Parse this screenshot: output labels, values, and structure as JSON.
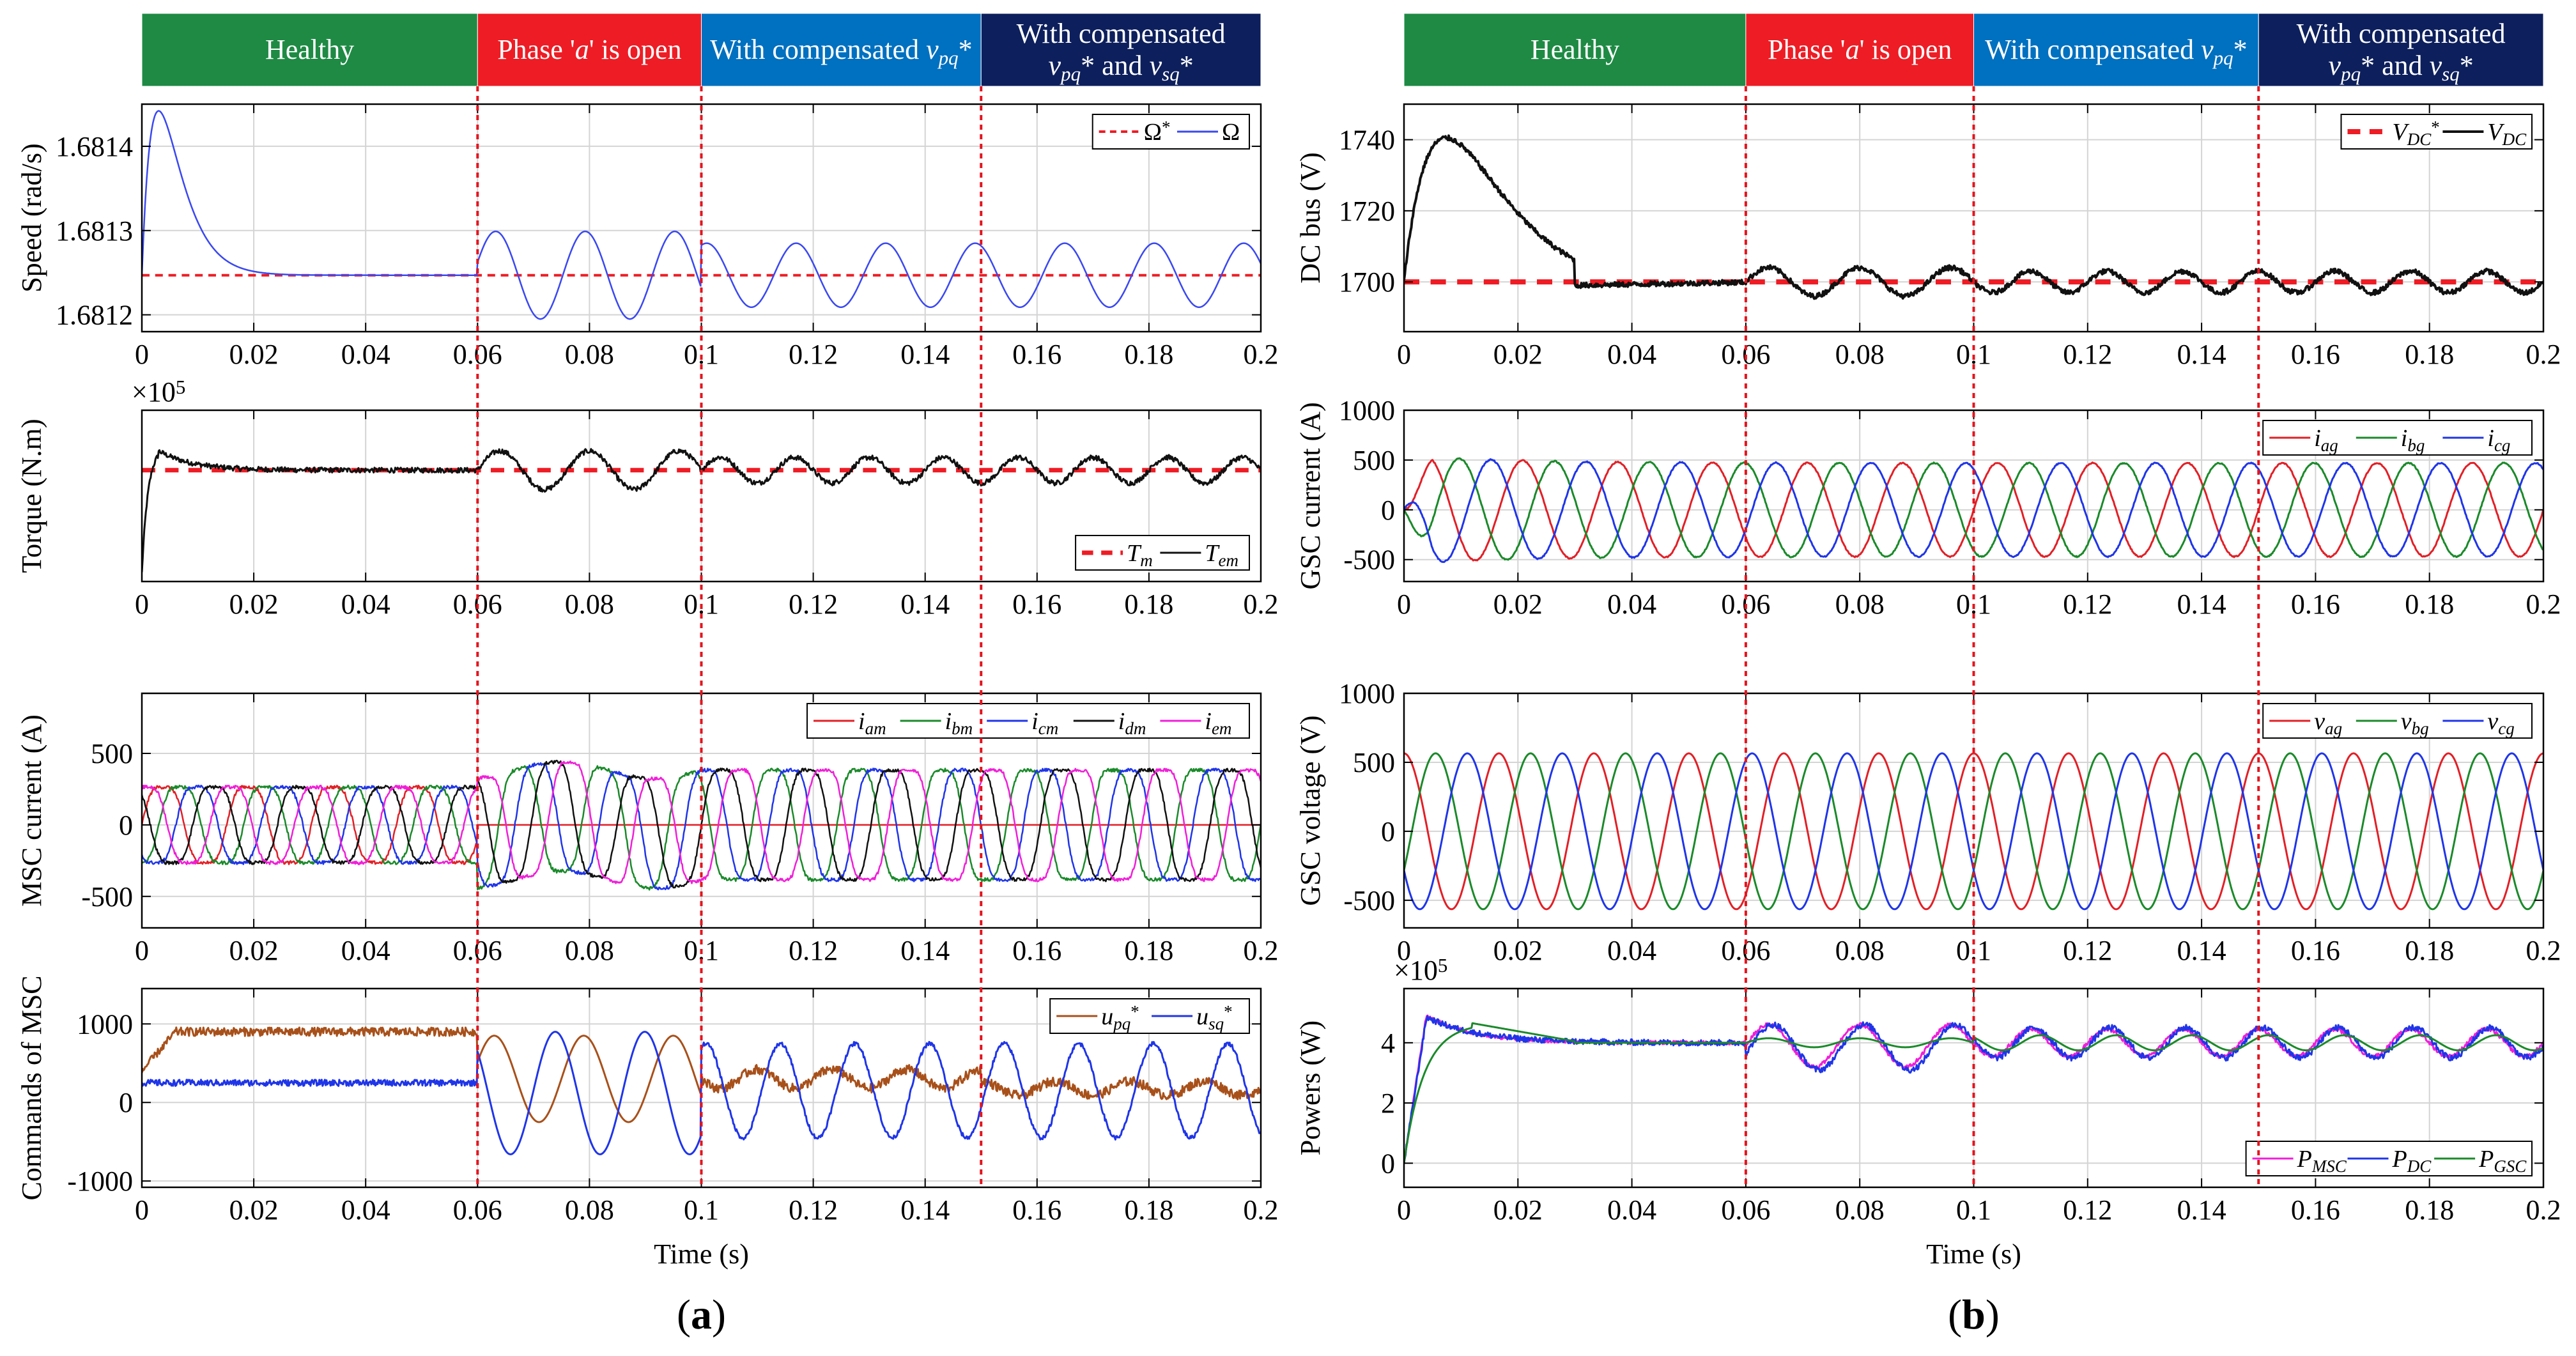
{
  "figure": {
    "panel_labels": [
      {
        "open": "(",
        "letter": "a",
        "close": ")"
      },
      {
        "open": "(",
        "letter": "b",
        "close": ")"
      }
    ],
    "time_label": "Time (s)",
    "phase_colors": [
      "#1e8a44",
      "#ee1c24",
      "#0070c0",
      "#0d1f5c"
    ],
    "phases": [
      {
        "lines": [
          [
            {
              "t": "Healthy"
            }
          ]
        ]
      },
      {
        "lines": [
          [
            {
              "t": "Phase '"
            },
            {
              "t": "a",
              "i": true
            },
            {
              "t": "' is open"
            }
          ]
        ]
      },
      {
        "lines": [
          [
            {
              "t": "With compensated "
            },
            {
              "t": "v",
              "i": true
            },
            {
              "t": "pq",
              "i": true,
              "sub": true
            },
            {
              "t": "*"
            }
          ]
        ]
      },
      {
        "lines": [
          [
            {
              "t": "With compensated"
            }
          ],
          [
            {
              "t": "v",
              "i": true
            },
            {
              "t": "pq",
              "i": true,
              "sub": true
            },
            {
              "t": "* and "
            },
            {
              "t": "v",
              "i": true
            },
            {
              "t": "sq",
              "i": true,
              "sub": true
            },
            {
              "t": "*"
            }
          ]
        ]
      }
    ],
    "x_ticks": [
      0,
      0.02,
      0.04,
      0.06,
      0.08,
      0.1,
      0.12,
      0.14,
      0.16,
      0.18,
      0.2
    ],
    "x_tick_labels": [
      "0",
      "0.02",
      "0.04",
      "0.06",
      "0.08",
      "0.1",
      "0.12",
      "0.14",
      "0.16",
      "0.18",
      "0.2"
    ],
    "event_times": [
      0.06,
      0.1,
      0.15
    ]
  },
  "chart_data": [
    {
      "panel": "a",
      "type": "line",
      "ylabel": "Speed (rad/s)",
      "xlim": [
        0,
        0.2
      ],
      "ylim": [
        1.68118,
        1.68145
      ],
      "yticks": [
        1.6812,
        1.6813,
        1.6814
      ],
      "ytick_labels": [
        "1.6812",
        "1.6813",
        "1.6814"
      ],
      "exponent": "",
      "legend": {
        "position": "top-right",
        "entries": [
          [
            {
              "t": "Ω"
            },
            {
              "t": "*",
              "sup": true
            }
          ],
          [
            {
              "t": "Ω"
            }
          ]
        ]
      },
      "series": [
        {
          "name": "Ω*",
          "color": "#ee1c24",
          "style": "dashed",
          "width": 4,
          "shape": "const",
          "value": 1.681247
        },
        {
          "name": "Ω",
          "color": "#3a48f0",
          "style": "solid",
          "width": 2.5,
          "shape": "speed",
          "value": 1.681247
        }
      ]
    },
    {
      "panel": "a",
      "type": "line",
      "ylabel": "Torque (N.m)",
      "xlim": [
        0,
        0.2
      ],
      "ylim": [
        -0.2,
        3.8
      ],
      "yticks": [],
      "ytick_labels": [],
      "exponent": "×10^5",
      "legend": {
        "position": "bottom-right",
        "entries": [
          [
            {
              "t": "T",
              "i": true
            },
            {
              "t": "m",
              "i": true,
              "sub": true
            }
          ],
          [
            {
              "t": "T",
              "i": true
            },
            {
              "t": "em",
              "i": true,
              "sub": true
            }
          ]
        ]
      },
      "series": [
        {
          "name": "Tm",
          "color": "#ee1c24",
          "style": "dashed",
          "width": 7,
          "shape": "const",
          "value": 2.4
        },
        {
          "name": "Tem",
          "color": "#111111",
          "style": "solid",
          "width": 3,
          "shape": "torque",
          "value": 2.4
        }
      ]
    },
    {
      "panel": "a",
      "type": "line",
      "ylabel": "MSC current (A)",
      "xlim": [
        0,
        0.2
      ],
      "ylim": [
        -720,
        920
      ],
      "yticks": [
        -500,
        0,
        500
      ],
      "ytick_labels": [
        "-500",
        "0",
        "500"
      ],
      "exponent": "",
      "legend": {
        "position": "top-right",
        "entries": [
          [
            {
              "t": "i",
              "i": true
            },
            {
              "t": "am",
              "i": true,
              "sub": true
            }
          ],
          [
            {
              "t": "i",
              "i": true
            },
            {
              "t": "bm",
              "i": true,
              "sub": true
            }
          ],
          [
            {
              "t": "i",
              "i": true
            },
            {
              "t": "cm",
              "i": true,
              "sub": true
            }
          ],
          [
            {
              "t": "i",
              "i": true
            },
            {
              "t": "dm",
              "i": true,
              "sub": true
            }
          ],
          [
            {
              "t": "i",
              "i": true
            },
            {
              "t": "em",
              "i": true,
              "sub": true
            }
          ]
        ]
      },
      "series": [
        {
          "name": "iam",
          "color": "#e21f26",
          "style": "solid",
          "width": 2.5,
          "shape": "msc",
          "amp": 300,
          "phase": 0
        },
        {
          "name": "ibm",
          "color": "#1a8a2a",
          "style": "solid",
          "width": 2.5,
          "shape": "msc",
          "amp": 300,
          "phase": -72
        },
        {
          "name": "icm",
          "color": "#1f35e8",
          "style": "solid",
          "width": 2.5,
          "shape": "msc",
          "amp": 300,
          "phase": -144
        },
        {
          "name": "idm",
          "color": "#111111",
          "style": "solid",
          "width": 2.5,
          "shape": "msc",
          "amp": 300,
          "phase": -216
        },
        {
          "name": "iem",
          "color": "#f01fd8",
          "style": "solid",
          "width": 2.5,
          "shape": "msc",
          "amp": 300,
          "phase": -288
        }
      ]
    },
    {
      "panel": "a",
      "type": "line",
      "ylabel": "Commands of MSC",
      "xlim": [
        0,
        0.2
      ],
      "ylim": [
        -1080,
        1450
      ],
      "yticks": [
        -1000,
        0,
        1000
      ],
      "ytick_labels": [
        "-1000",
        "0",
        "1000"
      ],
      "exponent": "",
      "legend": {
        "position": "top-right",
        "entries": [
          [
            {
              "t": "u",
              "i": true
            },
            {
              "t": "pq",
              "i": true,
              "sub": true
            },
            {
              "t": "*",
              "sup": true
            }
          ],
          [
            {
              "t": "u",
              "i": true
            },
            {
              "t": "sq",
              "i": true,
              "sub": true
            },
            {
              "t": "*",
              "sup": true
            }
          ]
        ]
      },
      "series": [
        {
          "name": "upq*",
          "color": "#a8501a",
          "style": "solid",
          "width": 3,
          "shape": "upq",
          "value": 900
        },
        {
          "name": "usq*",
          "color": "#1f35e8",
          "style": "solid",
          "width": 3,
          "shape": "usq",
          "value": 250
        }
      ]
    },
    {
      "panel": "b",
      "type": "line",
      "ylabel": "DC bus (V)",
      "xlim": [
        0,
        0.2
      ],
      "ylim": [
        1686,
        1750
      ],
      "yticks": [
        1700,
        1720,
        1740
      ],
      "ytick_labels": [
        "1700",
        "1720",
        "1740"
      ],
      "exponent": "",
      "legend": {
        "position": "top-right",
        "entries": [
          [
            {
              "t": "V",
              "i": true
            },
            {
              "t": "DC",
              "i": true,
              "sub": true
            },
            {
              "t": "*",
              "sup": true
            }
          ],
          [
            {
              "t": "V",
              "i": true
            },
            {
              "t": "DC",
              "i": true,
              "sub": true
            }
          ]
        ]
      },
      "series": [
        {
          "name": "VDC*",
          "color": "#ee1c24",
          "style": "dashed",
          "width": 8,
          "shape": "const",
          "value": 1700
        },
        {
          "name": "VDC",
          "color": "#111111",
          "style": "solid",
          "width": 4,
          "shape": "dcbus",
          "value": 1700
        }
      ]
    },
    {
      "panel": "b",
      "type": "line",
      "ylabel": "GSC current (A)",
      "xlim": [
        0,
        0.2
      ],
      "ylim": [
        -720,
        1000
      ],
      "yticks": [
        -500,
        0,
        500,
        1000
      ],
      "ytick_labels": [
        "-500",
        "0",
        "500",
        "1000"
      ],
      "exponent": "",
      "legend": {
        "position": "top-right",
        "entries": [
          [
            {
              "t": "i",
              "i": true
            },
            {
              "t": "ag",
              "i": true,
              "sub": true
            }
          ],
          [
            {
              "t": "i",
              "i": true
            },
            {
              "t": "bg",
              "i": true,
              "sub": true
            }
          ],
          [
            {
              "t": "i",
              "i": true
            },
            {
              "t": "cg",
              "i": true,
              "sub": true
            }
          ]
        ]
      },
      "series": [
        {
          "name": "iag",
          "color": "#e21f26",
          "style": "solid",
          "width": 3,
          "shape": "gsci",
          "amp": 470,
          "phase": 0
        },
        {
          "name": "ibg",
          "color": "#1a8a2a",
          "style": "solid",
          "width": 3,
          "shape": "gsci",
          "amp": 470,
          "phase": -120
        },
        {
          "name": "icg",
          "color": "#1f35e8",
          "style": "solid",
          "width": 3,
          "shape": "gsci",
          "amp": 470,
          "phase": -240
        }
      ]
    },
    {
      "panel": "b",
      "type": "line",
      "ylabel": "GSC voltage (V)",
      "xlim": [
        0,
        0.2
      ],
      "ylim": [
        -700,
        1000
      ],
      "yticks": [
        -500,
        0,
        500,
        1000
      ],
      "ytick_labels": [
        "-500",
        "0",
        "500",
        "1000"
      ],
      "exponent": "",
      "legend": {
        "position": "top-right",
        "entries": [
          [
            {
              "t": "v",
              "i": true
            },
            {
              "t": "ag",
              "i": true,
              "sub": true
            }
          ],
          [
            {
              "t": "v",
              "i": true
            },
            {
              "t": "bg",
              "i": true,
              "sub": true
            }
          ],
          [
            {
              "t": "v",
              "i": true
            },
            {
              "t": "cg",
              "i": true,
              "sub": true
            }
          ]
        ]
      },
      "series": [
        {
          "name": "vag",
          "color": "#e21f26",
          "style": "solid",
          "width": 3,
          "shape": "gscv",
          "amp": 565,
          "phase": 90
        },
        {
          "name": "vbg",
          "color": "#1a8a2a",
          "style": "solid",
          "width": 3,
          "shape": "gscv",
          "amp": 565,
          "phase": -30
        },
        {
          "name": "vcg",
          "color": "#1f35e8",
          "style": "solid",
          "width": 3,
          "shape": "gscv",
          "amp": 565,
          "phase": -150
        }
      ]
    },
    {
      "panel": "b",
      "type": "line",
      "ylabel": "Powers (W)",
      "xlim": [
        0,
        0.2
      ],
      "ylim": [
        -0.8,
        5.8
      ],
      "yticks": [
        0,
        2,
        4
      ],
      "ytick_labels": [
        "0",
        "2",
        "4"
      ],
      "exponent": "×10^5",
      "legend": {
        "position": "bottom-right",
        "entries": [
          [
            {
              "t": "P",
              "i": true
            },
            {
              "t": "MSC",
              "i": true,
              "sub": true
            }
          ],
          [
            {
              "t": "P",
              "i": true
            },
            {
              "t": "DC",
              "i": true,
              "sub": true
            }
          ],
          [
            {
              "t": "P",
              "i": true
            },
            {
              "t": "GSC",
              "i": true,
              "sub": true
            }
          ]
        ]
      },
      "series": [
        {
          "name": "PMSC",
          "color": "#f01fd8",
          "style": "solid",
          "width": 3,
          "shape": "pmsc",
          "value": 4.0
        },
        {
          "name": "PDC",
          "color": "#1f35e8",
          "style": "solid",
          "width": 3,
          "shape": "pdc",
          "value": 4.0
        },
        {
          "name": "PGSC",
          "color": "#1a8a2a",
          "style": "solid",
          "width": 3,
          "shape": "pgsc",
          "value": 4.0
        }
      ]
    }
  ]
}
